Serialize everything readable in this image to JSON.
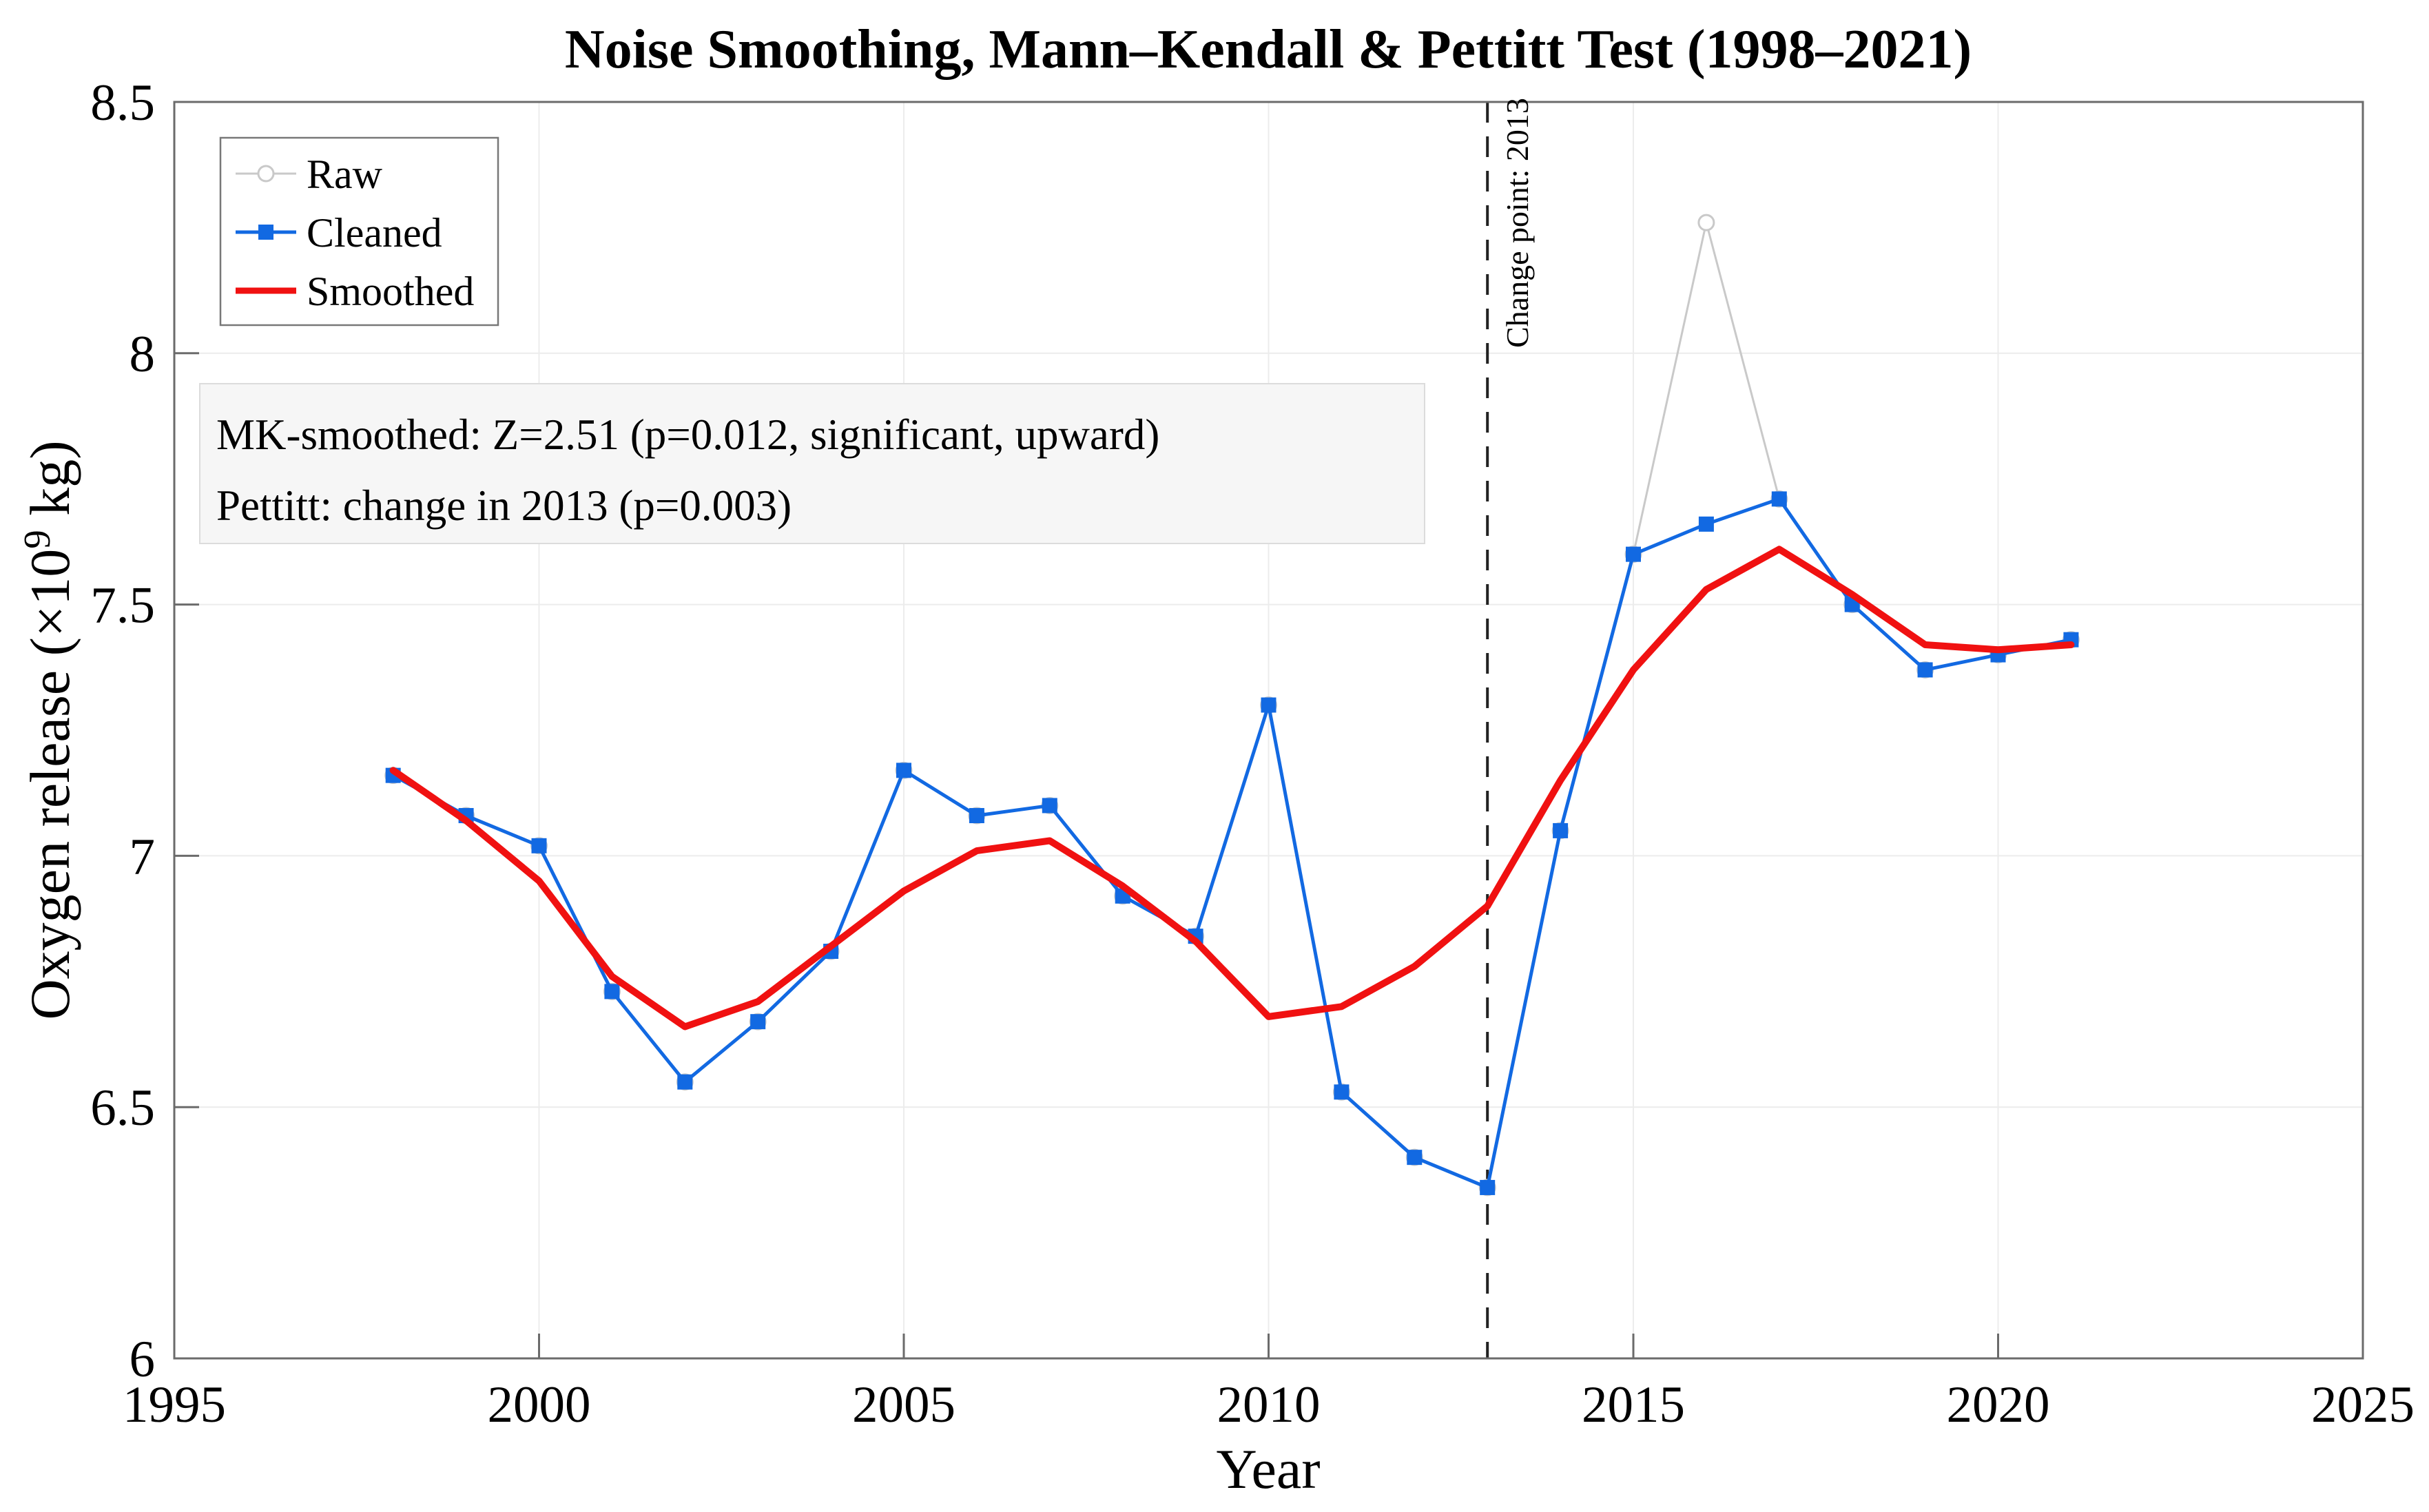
{
  "title": "Noise Smoothing, Mann–Kendall & Pettitt Test (1998–2021)",
  "axes": {
    "xlabel": "Year",
    "ylabel_prefix": "Oxygen release (×10",
    "ylabel_sup": "9",
    "ylabel_suffix": " kg)",
    "x_tick_labels": [
      "1995",
      "2000",
      "2005",
      "2010",
      "2015",
      "2020",
      "2025"
    ],
    "y_tick_labels": [
      "6",
      "6.5",
      "7",
      "7.5",
      "8",
      "8.5"
    ]
  },
  "legend": {
    "items": [
      "Raw",
      "Cleaned",
      "Smoothed"
    ]
  },
  "annotation": {
    "line1": "MK-smoothed: Z=2.51 (p=0.012, significant, upward)",
    "line2": "Pettitt: change in 2013 (p=0.003)"
  },
  "change_point": {
    "label": "Change point: 2013",
    "year": 2013
  },
  "colors": {
    "raw": "#c9c9c9",
    "cleaned": "#1269e2",
    "smoothed": "#f01111",
    "grid": "#ececec",
    "frame": "#6b6b6b",
    "dashed_line": "#222222"
  },
  "chart_data": {
    "type": "line",
    "x": [
      1998,
      1999,
      2000,
      2001,
      2002,
      2003,
      2004,
      2005,
      2006,
      2007,
      2008,
      2009,
      2010,
      2011,
      2012,
      2013,
      2014,
      2015,
      2016,
      2017,
      2018,
      2019,
      2020,
      2021
    ],
    "series": [
      {
        "name": "Raw",
        "values": [
          7.16,
          7.08,
          7.02,
          6.73,
          6.55,
          6.67,
          6.81,
          7.17,
          7.08,
          7.1,
          6.92,
          6.84,
          7.3,
          6.53,
          6.4,
          6.34,
          7.05,
          7.6,
          8.26,
          7.71,
          7.5,
          7.37,
          7.4,
          7.43
        ]
      },
      {
        "name": "Cleaned",
        "values": [
          7.16,
          7.08,
          7.02,
          6.73,
          6.55,
          6.67,
          6.81,
          7.17,
          7.08,
          7.1,
          6.92,
          6.84,
          7.3,
          6.53,
          6.4,
          6.34,
          7.05,
          7.6,
          7.66,
          7.71,
          7.5,
          7.37,
          7.4,
          7.43
        ]
      },
      {
        "name": "Smoothed",
        "values": [
          7.17,
          7.07,
          6.95,
          6.76,
          6.66,
          6.71,
          6.82,
          6.93,
          7.01,
          7.03,
          6.94,
          6.83,
          6.68,
          6.7,
          6.78,
          6.9,
          7.15,
          7.37,
          7.53,
          7.61,
          7.52,
          7.42,
          7.41,
          7.42
        ]
      }
    ],
    "xlim": [
      1995,
      2025
    ],
    "ylim": [
      6.0,
      8.5
    ],
    "x_ticks": [
      1995,
      2000,
      2005,
      2010,
      2015,
      2020,
      2025
    ],
    "y_ticks": [
      6.0,
      6.5,
      7.0,
      7.5,
      8.0,
      8.5
    ],
    "grid": true,
    "legend_position": "top-left",
    "xlabel": "Year",
    "ylabel": "Oxygen release (×10^9 kg)"
  }
}
